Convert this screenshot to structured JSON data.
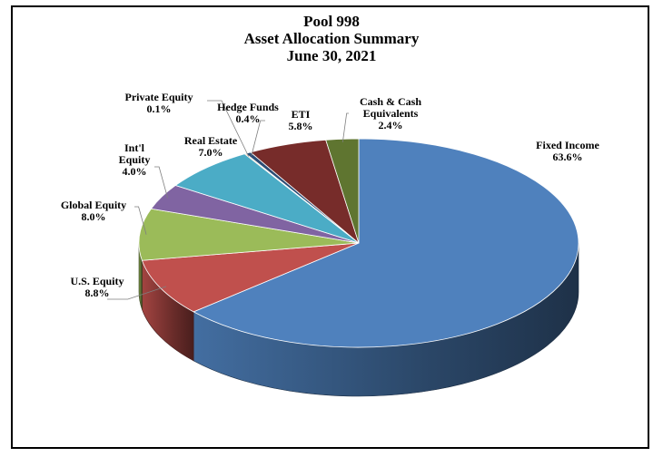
{
  "chart_data": {
    "type": "pie",
    "style": "3d",
    "title": "Pool 998",
    "subtitle_lines": [
      "Asset Allocation Summary",
      "June 30, 2021"
    ],
    "slices": [
      {
        "name": "Fixed Income",
        "value": 63.6,
        "label": "63.6%",
        "label_lines": [
          "Fixed Income"
        ],
        "color": "#4f81bd"
      },
      {
        "name": "U.S. Equity",
        "value": 8.8,
        "label": "8.8%",
        "label_lines": [
          "U.S. Equity"
        ],
        "color": "#c0504d"
      },
      {
        "name": "Global Equity",
        "value": 8.0,
        "label": "8.0%",
        "label_lines": [
          "Global Equity"
        ],
        "color": "#9bbb59"
      },
      {
        "name": "Int'l Equity",
        "value": 4.0,
        "label": "4.0%",
        "label_lines": [
          "Int'l",
          "Equity"
        ],
        "color": "#8064a2"
      },
      {
        "name": "Real Estate",
        "value": 7.0,
        "label": "7.0%",
        "label_lines": [
          "Real Estate"
        ],
        "color": "#4bacc6"
      },
      {
        "name": "Private Equity",
        "value": 0.1,
        "label": "0.1%",
        "label_lines": [
          "Private Equity"
        ],
        "color": "#f79646"
      },
      {
        "name": "Hedge Funds",
        "value": 0.4,
        "label": "0.4%",
        "label_lines": [
          "Hedge Funds"
        ],
        "color": "#2c4d75"
      },
      {
        "name": "ETI",
        "value": 5.8,
        "label": "5.8%",
        "label_lines": [
          "ETI"
        ],
        "color": "#772c2a"
      },
      {
        "name": "Cash & Cash Equivalents",
        "value": 2.4,
        "label": "2.4%",
        "label_lines": [
          "Cash & Cash",
          "Equivalents"
        ],
        "color": "#5f7530"
      }
    ]
  }
}
